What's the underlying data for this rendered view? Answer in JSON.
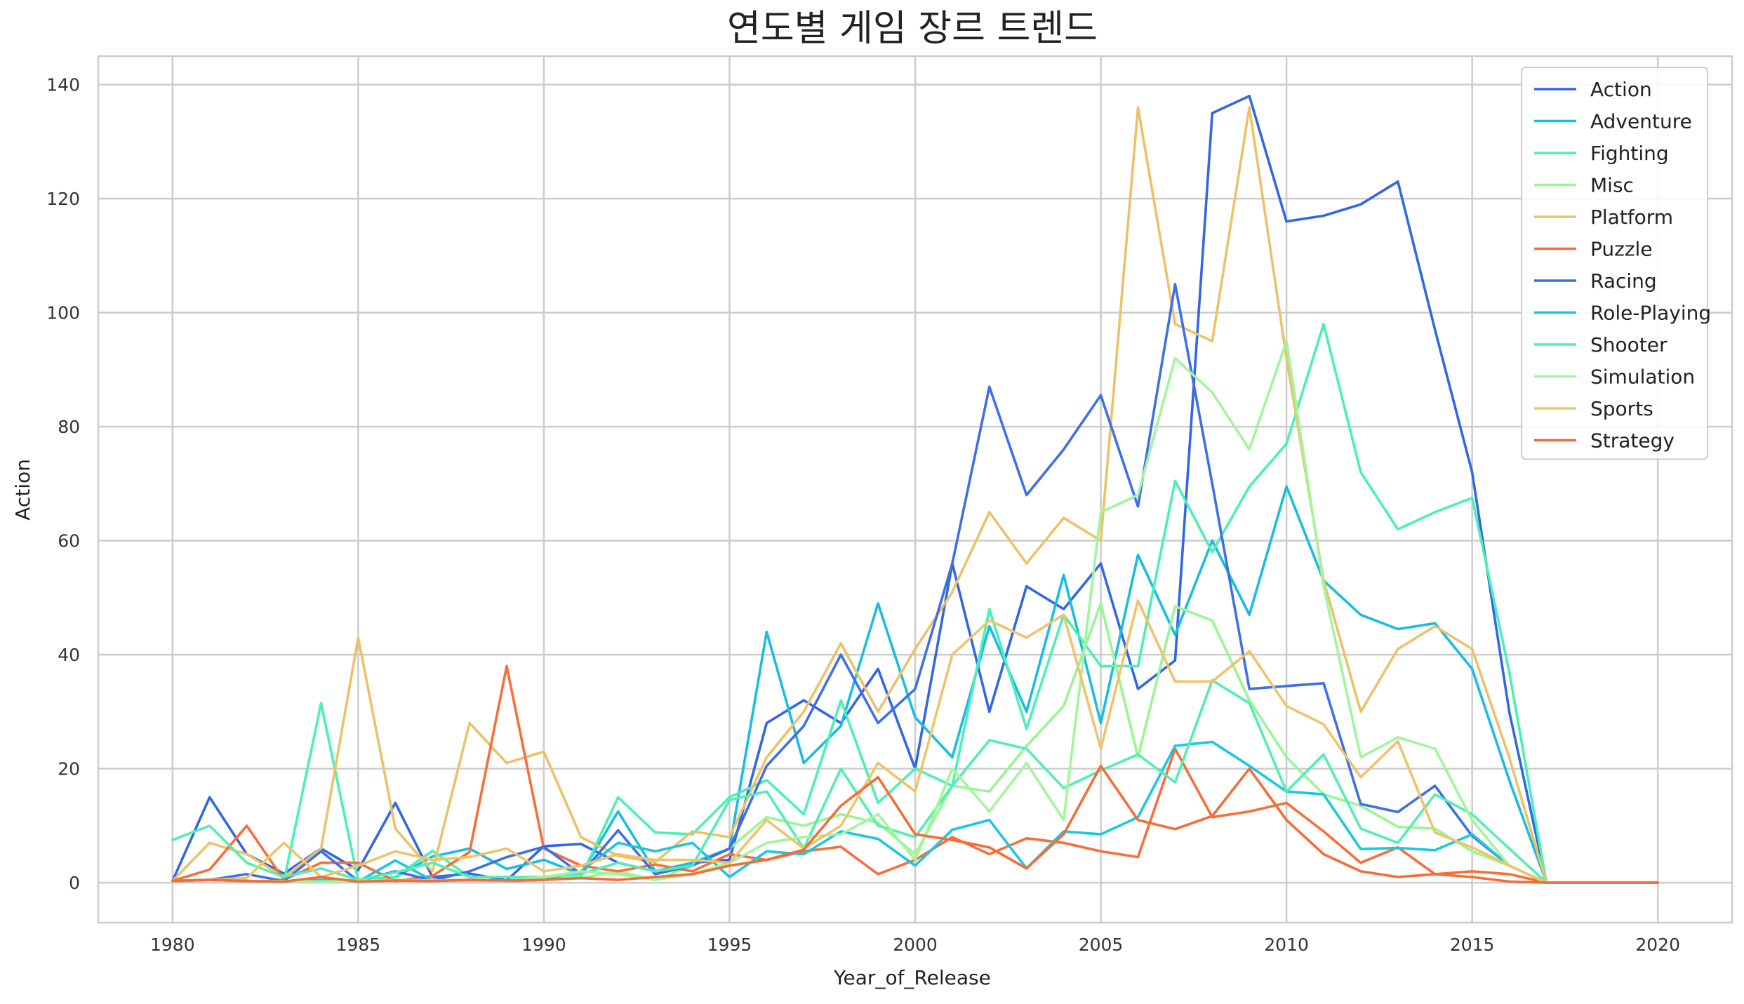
{
  "chart_data": {
    "type": "line",
    "title": "연도별 게임 장르 트렌드",
    "xlabel": "Year_of_Release",
    "ylabel": "Action",
    "xlim": [
      1978,
      2022
    ],
    "ylim": [
      -7,
      145
    ],
    "xticks": [
      1980,
      1985,
      1990,
      1995,
      2000,
      2005,
      2010,
      2015,
      2020
    ],
    "yticks": [
      0,
      20,
      40,
      60,
      80,
      100,
      120,
      140
    ],
    "grid": true,
    "legend_position": "top-right",
    "x": [
      1980,
      1981,
      1982,
      1983,
      1984,
      1985,
      1986,
      1987,
      1988,
      1989,
      1990,
      1991,
      1992,
      1993,
      1994,
      1995,
      1996,
      1997,
      1998,
      1999,
      2000,
      2001,
      2002,
      2003,
      2004,
      2005,
      2006,
      2007,
      2008,
      2009,
      2010,
      2011,
      2012,
      2013,
      2014,
      2015,
      2016,
      2017,
      2018,
      2019,
      2020
    ],
    "series": [
      {
        "name": "Action",
        "color": "#3366e6",
        "values": [
          0.3,
          15,
          5,
          1.6,
          6,
          2.2,
          14,
          1,
          1.6,
          0.4,
          6.4,
          6.8,
          3.5,
          2,
          3.5,
          4,
          28,
          32,
          28,
          37.5,
          20,
          56,
          30,
          52,
          48,
          56,
          34,
          39,
          135,
          138,
          116,
          117,
          119,
          123,
          97,
          72,
          30,
          0,
          0,
          0,
          0
        ]
      },
      {
        "name": "Adventure",
        "color": "#18bde0",
        "values": [
          0.3,
          0.5,
          0.3,
          0.2,
          0.3,
          0.4,
          1,
          4.6,
          6,
          2.4,
          4,
          1.5,
          12.5,
          2,
          3.5,
          6,
          44,
          21,
          27.5,
          49,
          29,
          22,
          45,
          30,
          54,
          28,
          57.5,
          43.5,
          60,
          47,
          69.5,
          53,
          47,
          44.5,
          45.5,
          37.5,
          18,
          0,
          0,
          0,
          0
        ]
      },
      {
        "name": "Fighting",
        "color": "#4af0b6",
        "values": [
          0.3,
          0.5,
          0.3,
          0.2,
          31.5,
          0.3,
          1,
          5.6,
          1,
          1,
          0.5,
          1,
          15,
          8.8,
          8.5,
          15,
          18,
          12,
          32,
          14,
          20,
          17,
          48,
          27,
          47,
          38,
          38,
          70.5,
          58,
          69.5,
          77,
          98,
          72,
          62,
          65,
          67.5,
          37,
          0,
          0,
          0,
          0
        ]
      },
      {
        "name": "Misc",
        "color": "#9af594",
        "values": [
          0.3,
          0.5,
          0.3,
          0.2,
          0.2,
          0.2,
          0.4,
          0.3,
          0.4,
          0.3,
          0.5,
          0.8,
          2,
          0.5,
          3,
          6,
          11.5,
          10,
          12,
          10.5,
          5,
          17,
          16,
          24,
          31,
          49,
          22,
          48.5,
          46,
          32,
          22,
          15.5,
          13.5,
          9.8,
          9.5,
          5.5,
          3,
          0,
          0,
          0,
          0
        ]
      },
      {
        "name": "Platform",
        "color": "#ecc268",
        "values": [
          0.3,
          7,
          5,
          1,
          6,
          43,
          9.5,
          2,
          28,
          21,
          23,
          8,
          4.7,
          3.6,
          9,
          8,
          22,
          30,
          42,
          30,
          41,
          51,
          65,
          56,
          64,
          60,
          136,
          98,
          95,
          136,
          92,
          53,
          30,
          41,
          45,
          41,
          22,
          0,
          0,
          0,
          0
        ]
      },
      {
        "name": "Puzzle",
        "color": "#f96e38",
        "values": [
          0.3,
          2.3,
          10,
          0.5,
          3.5,
          3.5,
          0.3,
          1.2,
          5.4,
          38,
          6,
          3,
          2,
          3.2,
          2,
          5,
          4,
          5.5,
          6.3,
          1.5,
          4,
          8,
          5,
          7.8,
          7,
          5.5,
          4.5,
          23.5,
          11.5,
          12.5,
          14,
          9,
          3.5,
          6.2,
          1.5,
          2,
          1.5,
          0,
          0,
          0,
          0
        ]
      },
      {
        "name": "Racing",
        "color": "#3f6fe8",
        "values": [
          0.3,
          0.5,
          1.5,
          0.3,
          5.5,
          0.3,
          2,
          0.4,
          2,
          4.5,
          6.3,
          1.5,
          9.2,
          1.5,
          3,
          6,
          20.5,
          27.5,
          40,
          28,
          34,
          56,
          87,
          68,
          76,
          85.5,
          66,
          105,
          70,
          34,
          34.5,
          35,
          13.8,
          12.4,
          17,
          8.2,
          3,
          0,
          0,
          0,
          0
        ]
      },
      {
        "name": "Role-Playing",
        "color": "#1ac7e2",
        "values": [
          0.3,
          0.5,
          0.3,
          0.2,
          0.5,
          0.2,
          3.9,
          0.4,
          0.5,
          0.3,
          0.5,
          2,
          7,
          5.5,
          7,
          1,
          5.5,
          5,
          9,
          7.7,
          3,
          9.3,
          11,
          2.5,
          9,
          8.5,
          11.5,
          24,
          24.7,
          20.5,
          16,
          15.5,
          5.9,
          6.1,
          5.7,
          8.5,
          3,
          0,
          0,
          0,
          0
        ]
      },
      {
        "name": "Shooter",
        "color": "#52eeb2",
        "values": [
          7.5,
          10,
          3.5,
          1,
          2.5,
          0.5,
          1.8,
          3.5,
          1,
          1,
          1,
          1.5,
          3.5,
          2,
          3,
          14.5,
          16,
          6,
          20,
          10,
          8,
          17,
          25,
          23.5,
          16.6,
          19.7,
          22.5,
          17.6,
          35.5,
          31.5,
          16,
          22.5,
          9.5,
          7,
          15.5,
          12,
          6,
          0,
          0,
          0,
          0
        ]
      },
      {
        "name": "Simulation",
        "color": "#a2f59e",
        "values": [
          0.3,
          0.5,
          0.3,
          0.3,
          0.2,
          0.3,
          0.5,
          0.4,
          0.5,
          0.3,
          1,
          2,
          1.5,
          0.5,
          1.5,
          3.5,
          7,
          8,
          8.5,
          12,
          4,
          20,
          12.5,
          21,
          11,
          65,
          68,
          92,
          86,
          76,
          95,
          52,
          22,
          25.5,
          23.5,
          11,
          3,
          0,
          0,
          0,
          0
        ]
      },
      {
        "name": "Sports",
        "color": "#eec46a",
        "values": [
          0.3,
          0.5,
          0.8,
          7,
          1,
          3,
          5.5,
          4,
          4.5,
          6,
          2,
          3,
          5,
          4,
          4,
          3.5,
          11,
          6,
          10,
          21,
          16,
          40,
          46,
          43,
          47,
          23.5,
          49.5,
          35.3,
          35.3,
          40.6,
          31,
          27.8,
          18.5,
          24.8,
          8.8,
          6.2,
          3,
          0,
          0,
          0,
          0
        ]
      },
      {
        "name": "Strategy",
        "color": "#f56c36",
        "values": [
          0.3,
          0.5,
          0.3,
          0.2,
          1,
          0.2,
          0.4,
          0.3,
          0.5,
          0.4,
          0.5,
          0.8,
          0.5,
          1,
          1.5,
          3,
          4,
          5.8,
          13.5,
          18.5,
          8.5,
          7.5,
          6.2,
          2.5,
          8.5,
          20.5,
          11,
          9.4,
          11.7,
          20,
          11,
          5,
          2,
          1,
          1.5,
          1,
          0.2,
          0,
          0,
          0,
          0
        ]
      }
    ]
  }
}
